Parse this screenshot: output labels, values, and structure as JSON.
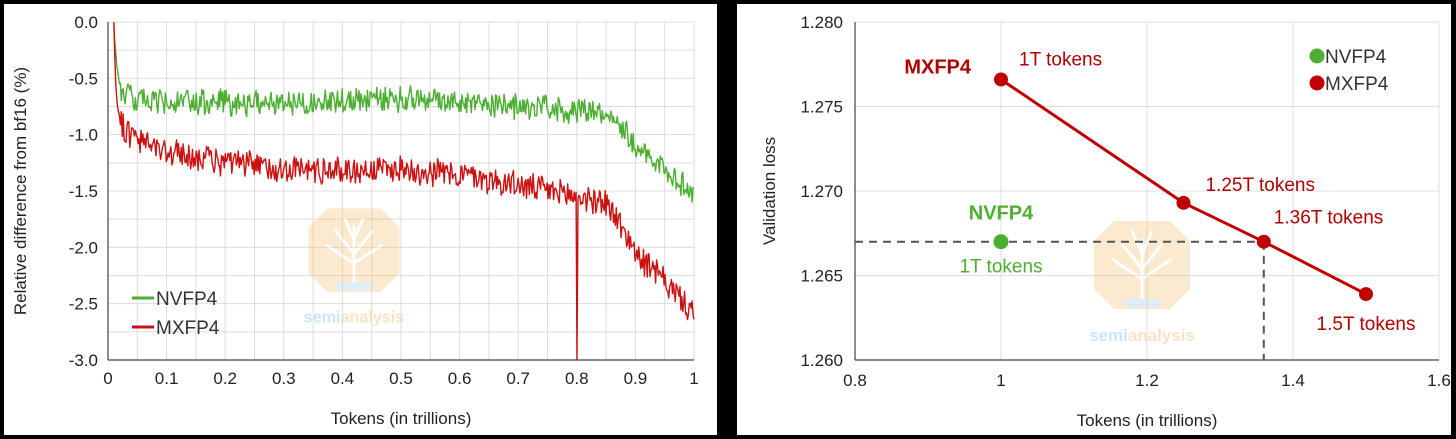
{
  "chart_data": [
    {
      "type": "line",
      "title": "",
      "xlabel": "Tokens (in trillions)",
      "ylabel": "Relative difference from bf16 (%)",
      "xlim": [
        0,
        1
      ],
      "ylim": [
        -3.0,
        0.0
      ],
      "xticks": [
        "0",
        "0.1",
        "0.2",
        "0.3",
        "0.4",
        "0.5",
        "0.6",
        "0.7",
        "0.8",
        "0.9",
        "1"
      ],
      "yticks": [
        "0.0",
        "-0.5",
        "-1.0",
        "-1.5",
        "-2.0",
        "-2.5",
        "-3.0"
      ],
      "grid": true,
      "legend_position": "bottom-left",
      "series": [
        {
          "name": "NVFP4",
          "color": "#4caf32",
          "x": [
            0.01,
            0.012,
            0.015,
            0.02,
            0.03,
            0.05,
            0.1,
            0.2,
            0.3,
            0.4,
            0.5,
            0.6,
            0.7,
            0.8,
            0.85,
            0.88,
            0.9,
            0.95,
            1.0
          ],
          "values": [
            0.0,
            -0.2,
            -0.4,
            -0.55,
            -0.65,
            -0.7,
            -0.72,
            -0.72,
            -0.72,
            -0.7,
            -0.68,
            -0.7,
            -0.75,
            -0.78,
            -0.8,
            -0.95,
            -1.1,
            -1.3,
            -1.55
          ]
        },
        {
          "name": "MXFP4",
          "color": "#cc1111",
          "x": [
            0.01,
            0.012,
            0.015,
            0.02,
            0.03,
            0.05,
            0.1,
            0.2,
            0.3,
            0.4,
            0.5,
            0.6,
            0.7,
            0.75,
            0.8,
            0.85,
            0.88,
            0.9,
            0.95,
            1.0
          ],
          "values": [
            0.0,
            -0.4,
            -0.7,
            -0.85,
            -0.95,
            -1.05,
            -1.15,
            -1.25,
            -1.3,
            -1.32,
            -1.3,
            -1.35,
            -1.45,
            -1.5,
            -1.55,
            -1.6,
            -1.85,
            -2.05,
            -2.3,
            -2.6
          ],
          "spike": {
            "x": 0.8,
            "value": -3.0
          }
        }
      ],
      "watermark": "semianalysis"
    },
    {
      "type": "scatter",
      "title": "",
      "xlabel": "Tokens (in trillions)",
      "ylabel": "Validation loss",
      "xlim": [
        0.8,
        1.6
      ],
      "ylim": [
        1.26,
        1.28
      ],
      "xticks": [
        "0.8",
        "1",
        "1.2",
        "1.4",
        "1.6"
      ],
      "yticks": [
        "1.280",
        "1.275",
        "1.270",
        "1.265",
        "1.260"
      ],
      "grid": true,
      "legend_position": "top-right",
      "series": [
        {
          "name": "NVFP4",
          "color": "#4caf32",
          "x": [
            1.0
          ],
          "values": [
            1.267
          ],
          "point_labels": [
            "1T tokens"
          ],
          "series_label": "NVFP4"
        },
        {
          "name": "MXFP4",
          "color": "#c00000",
          "x": [
            1.0,
            1.25,
            1.36,
            1.5
          ],
          "values": [
            1.2766,
            1.2693,
            1.267,
            1.2639
          ],
          "point_labels": [
            "1T tokens",
            "1.25T tokens",
            "1.36T tokens",
            "1.5T tokens"
          ],
          "series_label": "MXFP4"
        }
      ],
      "reference_lines": {
        "y": 1.267,
        "x": 1.36,
        "style": "dashed"
      },
      "watermark": "semianalysis"
    }
  ]
}
